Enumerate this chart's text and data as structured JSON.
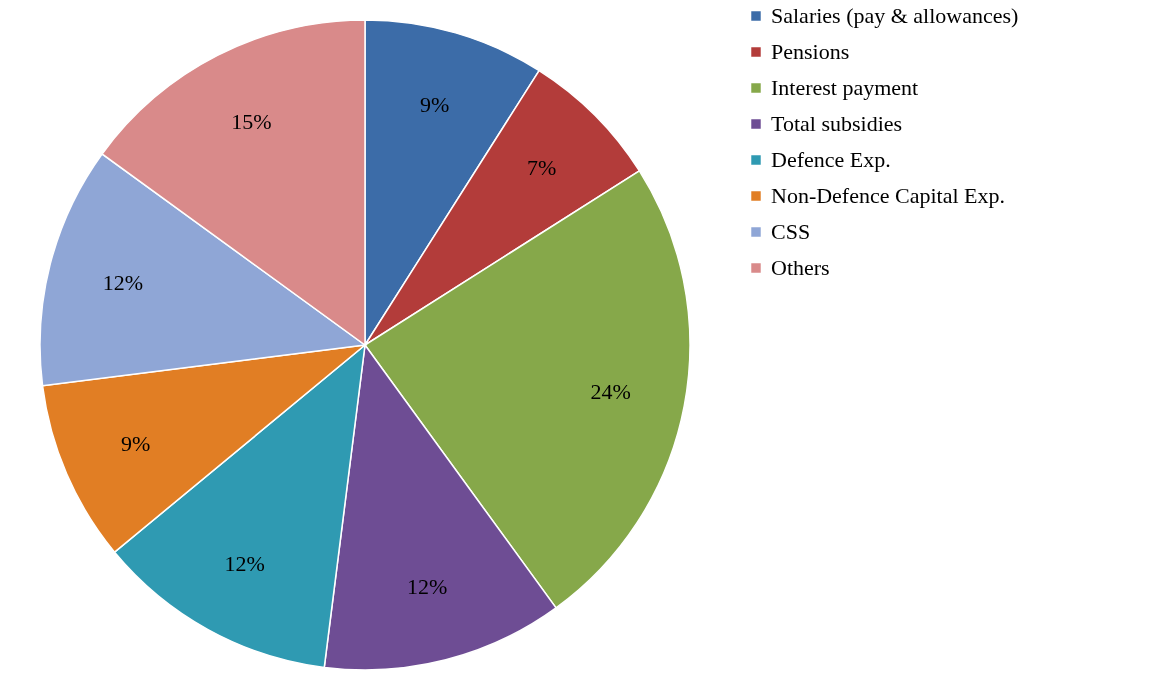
{
  "chart_data": {
    "type": "pie",
    "categories": [
      "Salaries (pay & allowances)",
      "Pensions",
      "Interest payment",
      "Total subsidies",
      "Defence Exp.",
      "Non-Defence Capital Exp.",
      "CSS",
      "Others"
    ],
    "values": [
      9,
      7,
      24,
      12,
      12,
      9,
      12,
      15
    ],
    "colors": [
      "#3c6ca8",
      "#b33c3a",
      "#86a84a",
      "#6e4d94",
      "#2f9ab2",
      "#e17e24",
      "#8fa6d6",
      "#d98a8a"
    ],
    "value_labels": [
      "9%",
      "7%",
      "24%",
      "12%",
      "12%",
      "9%",
      "12%",
      "15%"
    ],
    "legend": "right"
  }
}
